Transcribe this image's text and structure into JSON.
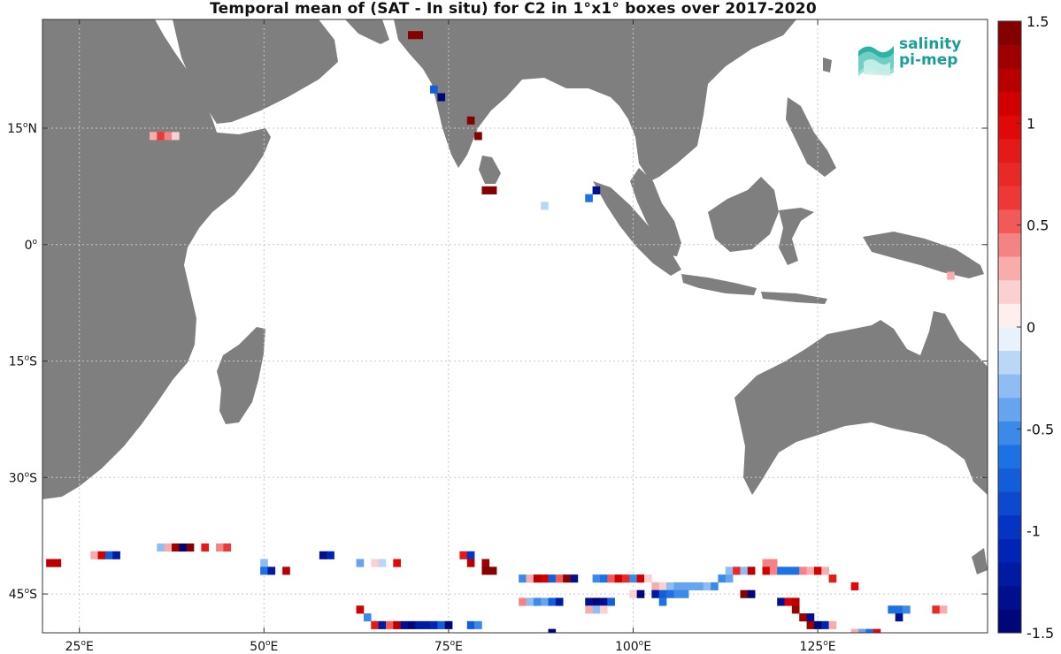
{
  "title": "Temporal mean of (SAT - In situ) for C2 in 1°x1° boxes over 2017-2020",
  "map": {
    "lon_range": [
      20,
      148
    ],
    "lat_range": [
      -50,
      29
    ],
    "lon_ticks": [
      {
        "value": 25,
        "label": "25",
        "sup": "o",
        "suffix": "E"
      },
      {
        "value": 50,
        "label": "50",
        "sup": "o",
        "suffix": "E"
      },
      {
        "value": 75,
        "label": "75",
        "sup": "o",
        "suffix": "E"
      },
      {
        "value": 100,
        "label": "100",
        "sup": "o",
        "suffix": "E"
      },
      {
        "value": 125,
        "label": "125",
        "sup": "o",
        "suffix": "E"
      }
    ],
    "lat_ticks": [
      {
        "value": 15,
        "label": "15",
        "sup": "o",
        "suffix": "N"
      },
      {
        "value": 0,
        "label": "0",
        "sup": "o",
        "suffix": ""
      },
      {
        "value": -15,
        "label": "15",
        "sup": "o",
        "suffix": "S"
      },
      {
        "value": -30,
        "label": "30",
        "sup": "o",
        "suffix": "S"
      },
      {
        "value": -45,
        "label": "45",
        "sup": "o",
        "suffix": "S"
      }
    ],
    "land_color": "#7f7f7f",
    "ocean_color": "#ffffff",
    "grid": true
  },
  "colorbar": {
    "range": [
      -1.5,
      1.5
    ],
    "levels": 26,
    "labels": [
      {
        "value": 1.5,
        "label": "1.5"
      },
      {
        "value": 1,
        "label": "1"
      },
      {
        "value": 0.5,
        "label": "0.5"
      },
      {
        "value": 0,
        "label": "0"
      },
      {
        "value": -0.5,
        "label": "-0.5"
      },
      {
        "value": -1,
        "label": "-1"
      },
      {
        "value": -1.5,
        "label": "-1.5"
      }
    ],
    "colormap": "blue-white-red"
  },
  "logo": {
    "line1": "salinity",
    "line2": "pi-mep"
  },
  "cells": [
    [
      21,
      -41,
      1.2
    ],
    [
      22,
      -41,
      1.2
    ],
    [
      27,
      -40,
      0.3
    ],
    [
      28,
      -40,
      1.1
    ],
    [
      29,
      -40,
      -0.8
    ],
    [
      30,
      -40,
      -1.2
    ],
    [
      36,
      -39,
      -0.3
    ],
    [
      37,
      -39,
      0.3
    ],
    [
      38,
      -39,
      1.3
    ],
    [
      39,
      -39,
      -1.4
    ],
    [
      40,
      -39,
      1.5
    ],
    [
      42,
      -39,
      0.9
    ],
    [
      44,
      -39,
      0.4
    ],
    [
      45,
      -39,
      0.6
    ],
    [
      50,
      -41,
      -0.3
    ],
    [
      50,
      -42,
      -0.6
    ],
    [
      51,
      -42,
      -1.2
    ],
    [
      53,
      -42,
      1.2
    ],
    [
      58,
      -40,
      -1.3
    ],
    [
      59,
      -40,
      -1.1
    ],
    [
      63,
      -41,
      -0.4
    ],
    [
      65,
      -41,
      0.2
    ],
    [
      66,
      -41,
      -0.2
    ],
    [
      68,
      -41,
      1.0
    ],
    [
      77,
      -40,
      0.9
    ],
    [
      78,
      -40,
      -1.0
    ],
    [
      78,
      -41,
      1.2
    ],
    [
      80,
      -41,
      1.3
    ],
    [
      80,
      -42,
      1.5
    ],
    [
      81,
      -42,
      1.4
    ],
    [
      85,
      -43,
      -0.5
    ],
    [
      86,
      -43,
      0.3
    ],
    [
      87,
      -43,
      1.2
    ],
    [
      88,
      -43,
      1.1
    ],
    [
      89,
      -43,
      -0.7
    ],
    [
      90,
      -43,
      0.5
    ],
    [
      91,
      -43,
      1.5
    ],
    [
      92,
      -43,
      -1.3
    ],
    [
      95,
      -43,
      -0.5
    ],
    [
      96,
      -43,
      -0.6
    ],
    [
      97,
      -43,
      0.5
    ],
    [
      98,
      -43,
      1.1
    ],
    [
      99,
      -43,
      0.8
    ],
    [
      100,
      -43,
      -0.5
    ],
    [
      101,
      -43,
      1.1
    ],
    [
      102,
      -43,
      0.2
    ],
    [
      103,
      -44,
      0.3
    ],
    [
      104,
      -44,
      0.2
    ],
    [
      105,
      -44,
      -0.3
    ],
    [
      106,
      -44,
      -0.4
    ],
    [
      107,
      -44,
      -0.4
    ],
    [
      108,
      -44,
      -0.4
    ],
    [
      109,
      -44,
      -0.4
    ],
    [
      110,
      -44,
      -0.3
    ],
    [
      111,
      -44,
      -0.5
    ],
    [
      112,
      -43,
      -0.5
    ],
    [
      113,
      -42,
      -0.3
    ],
    [
      113,
      -43,
      -0.4
    ],
    [
      114,
      -42,
      0.8
    ],
    [
      115,
      -42,
      -0.3
    ],
    [
      116,
      -42,
      1.2
    ],
    [
      118,
      -41,
      0.4
    ],
    [
      119,
      -41,
      0.4
    ],
    [
      118,
      -42,
      1.1
    ],
    [
      119,
      -42,
      0.4
    ],
    [
      120,
      -42,
      -0.6
    ],
    [
      121,
      -42,
      -0.6
    ],
    [
      122,
      -42,
      -0.6
    ],
    [
      123,
      -42,
      0.4
    ],
    [
      124,
      -42,
      0.3
    ],
    [
      125,
      -42,
      1.1
    ],
    [
      126,
      -42,
      0.3
    ],
    [
      127,
      -43,
      0.9
    ],
    [
      130,
      -44,
      1.0
    ],
    [
      85,
      -46,
      0.4
    ],
    [
      86,
      -46,
      -0.3
    ],
    [
      87,
      -46,
      -0.5
    ],
    [
      88,
      -46,
      -0.4
    ],
    [
      89,
      -46,
      -0.7
    ],
    [
      90,
      -46,
      -1.2
    ],
    [
      103,
      -45,
      -1.2
    ],
    [
      104,
      -45,
      -0.8
    ],
    [
      105,
      -45,
      -0.6
    ],
    [
      106,
      -45,
      -0.5
    ],
    [
      107,
      -45,
      -0.5
    ],
    [
      104,
      -46,
      -0.6
    ],
    [
      94,
      -46,
      -1.3
    ],
    [
      95,
      -46,
      -1.4
    ],
    [
      96,
      -46,
      -1.3
    ],
    [
      97,
      -46,
      -0.7
    ],
    [
      94,
      -47,
      0.3
    ],
    [
      95,
      -47,
      -0.3
    ],
    [
      96,
      -47,
      0.2
    ],
    [
      100,
      -45,
      0.2
    ],
    [
      101,
      -45,
      -1.5
    ],
    [
      115,
      -45,
      1.5
    ],
    [
      116,
      -45,
      -1.4
    ],
    [
      120,
      -46,
      -1.3
    ],
    [
      121,
      -46,
      1.1
    ],
    [
      122,
      -46,
      1.2
    ],
    [
      122,
      -47,
      1.3
    ],
    [
      123,
      -48,
      1.3
    ],
    [
      124,
      -48,
      -1.3
    ],
    [
      124,
      -49,
      1.3
    ],
    [
      125,
      -49,
      -1.4
    ],
    [
      126,
      -49,
      -1.1
    ],
    [
      127,
      -49,
      0.3
    ],
    [
      135,
      -47,
      -0.6
    ],
    [
      136,
      -47,
      -0.6
    ],
    [
      137,
      -47,
      -0.5
    ],
    [
      136,
      -48,
      -1.3
    ],
    [
      141,
      -47,
      0.8
    ],
    [
      142,
      -47,
      0.3
    ],
    [
      63,
      -47,
      1.1
    ],
    [
      64,
      -48,
      -0.5
    ],
    [
      65,
      -49,
      0.9
    ],
    [
      66,
      -49,
      -1.2
    ],
    [
      67,
      -49,
      0.5
    ],
    [
      68,
      -49,
      1.2
    ],
    [
      69,
      -49,
      -1.3
    ],
    [
      70,
      -49,
      -1.4
    ],
    [
      71,
      -49,
      -1.2
    ],
    [
      72,
      -49,
      -1.2
    ],
    [
      73,
      -49,
      -1.1
    ],
    [
      74,
      -49,
      -0.8
    ],
    [
      75,
      -49,
      -1.4
    ],
    [
      78,
      -49,
      -0.7
    ],
    [
      79,
      -49,
      -0.5
    ],
    [
      89,
      -50,
      -1.5
    ],
    [
      130,
      -50,
      0.3
    ],
    [
      131,
      -50,
      -0.4
    ],
    [
      132,
      -50,
      -0.6
    ],
    [
      133,
      -50,
      1.0
    ],
    [
      35,
      14,
      0.3
    ],
    [
      36,
      14,
      0.6
    ],
    [
      37,
      14,
      0.4
    ],
    [
      38,
      14,
      0.2
    ],
    [
      70,
      27,
      1.4
    ],
    [
      71,
      27,
      1.5
    ],
    [
      73,
      20,
      -0.8
    ],
    [
      74,
      19,
      -1.4
    ],
    [
      78,
      16,
      1.5
    ],
    [
      79,
      14,
      1.4
    ],
    [
      80,
      7,
      1.5
    ],
    [
      81,
      7,
      1.5
    ],
    [
      88,
      5,
      -0.2
    ],
    [
      94,
      6,
      -0.6
    ],
    [
      95,
      7,
      -1.3
    ],
    [
      143,
      -4,
      0.3
    ]
  ]
}
